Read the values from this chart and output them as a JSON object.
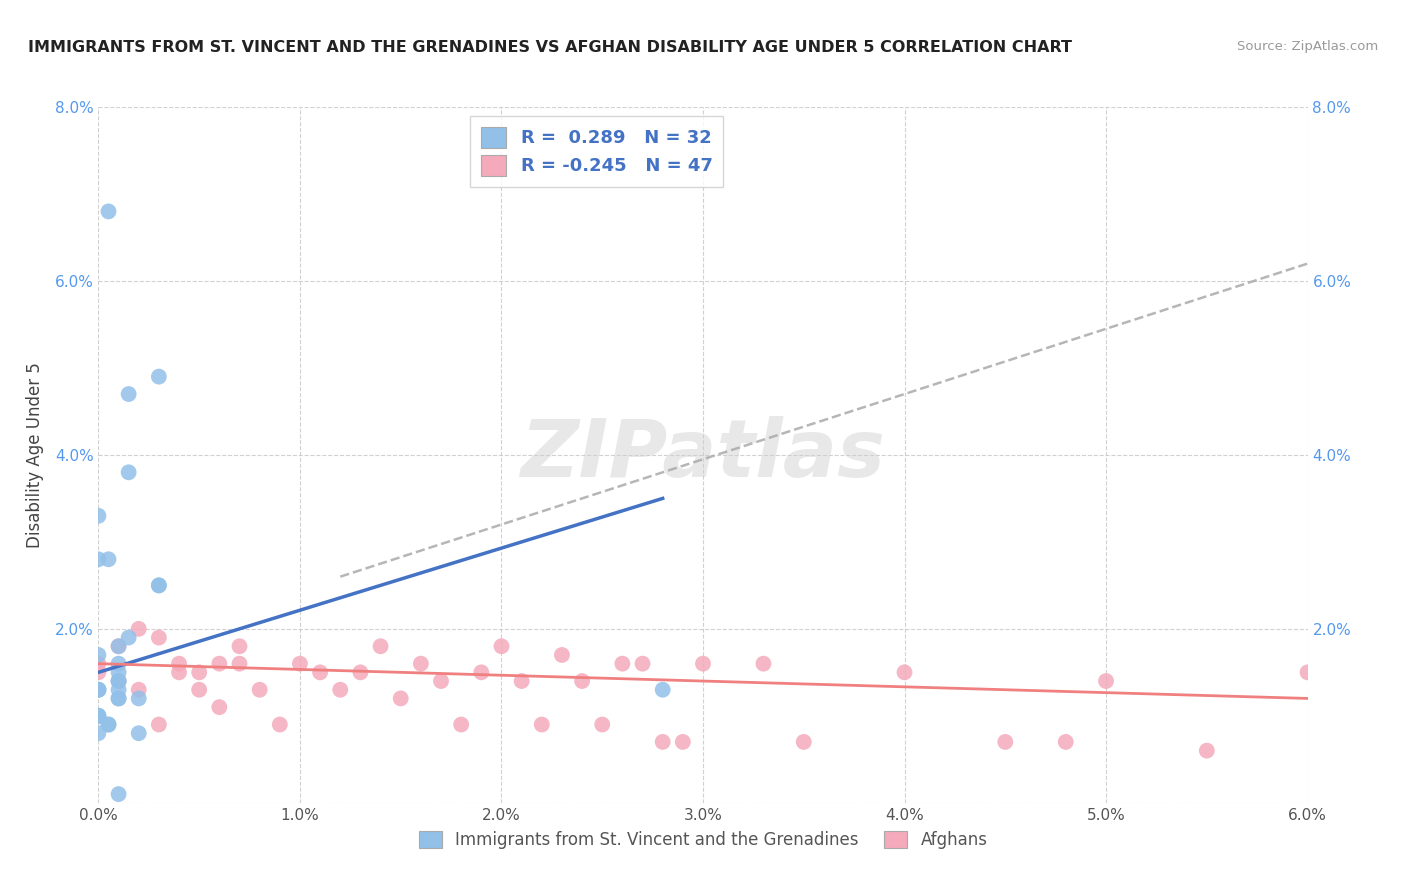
{
  "title": "IMMIGRANTS FROM ST. VINCENT AND THE GRENADINES VS AFGHAN DISABILITY AGE UNDER 5 CORRELATION CHART",
  "source": "Source: ZipAtlas.com",
  "ylabel": "Disability Age Under 5",
  "xlim": [
    0.0,
    0.06
  ],
  "ylim": [
    0.0,
    0.08
  ],
  "xtick_vals": [
    0.0,
    0.01,
    0.02,
    0.03,
    0.04,
    0.05,
    0.06
  ],
  "ytick_vals": [
    0.0,
    0.02,
    0.04,
    0.06,
    0.08
  ],
  "xtick_labels": [
    "0.0%",
    "1.0%",
    "2.0%",
    "3.0%",
    "4.0%",
    "5.0%",
    "6.0%"
  ],
  "ytick_labels": [
    "",
    "2.0%",
    "4.0%",
    "6.0%",
    "8.0%"
  ],
  "blue_color": "#92C0E8",
  "pink_color": "#F4AABB",
  "blue_line_color": "#4472C4",
  "pink_line_color": "#F08080",
  "dash_line_color": "#AAAAAA",
  "grid_color": "#CCCCCC",
  "legend_label1": "Immigrants from St. Vincent and the Grenadines",
  "legend_label2": "Afghans",
  "watermark_color": "#CECECE",
  "blue_x": [
    0.0005,
    0.0015,
    0.0,
    0.0,
    0.0005,
    0.0,
    0.0,
    0.001,
    0.001,
    0.0,
    0.0,
    0.001,
    0.0015,
    0.002,
    0.003,
    0.003,
    0.001,
    0.0,
    0.0,
    0.001,
    0.0,
    0.0005,
    0.0,
    0.001,
    0.002,
    0.0015,
    0.001,
    0.003,
    0.028,
    0.001,
    0.0005,
    0.001
  ],
  "blue_y": [
    0.068,
    0.038,
    0.033,
    0.028,
    0.028,
    0.017,
    0.013,
    0.018,
    0.014,
    0.013,
    0.013,
    0.012,
    0.019,
    0.012,
    0.025,
    0.025,
    0.012,
    0.01,
    0.01,
    0.016,
    0.01,
    0.009,
    0.008,
    0.015,
    0.008,
    0.047,
    0.001,
    0.049,
    0.013,
    0.013,
    0.009,
    0.014
  ],
  "pink_x": [
    0.0,
    0.001,
    0.0,
    0.001,
    0.002,
    0.002,
    0.003,
    0.003,
    0.004,
    0.004,
    0.005,
    0.005,
    0.006,
    0.006,
    0.007,
    0.007,
    0.008,
    0.009,
    0.01,
    0.011,
    0.012,
    0.013,
    0.014,
    0.015,
    0.016,
    0.017,
    0.018,
    0.019,
    0.02,
    0.021,
    0.022,
    0.023,
    0.024,
    0.025,
    0.026,
    0.027,
    0.028,
    0.029,
    0.03,
    0.033,
    0.035,
    0.04,
    0.05,
    0.055,
    0.06,
    0.045,
    0.048
  ],
  "pink_y": [
    0.016,
    0.014,
    0.015,
    0.018,
    0.02,
    0.013,
    0.019,
    0.009,
    0.015,
    0.016,
    0.015,
    0.013,
    0.016,
    0.011,
    0.018,
    0.016,
    0.013,
    0.009,
    0.016,
    0.015,
    0.013,
    0.015,
    0.018,
    0.012,
    0.016,
    0.014,
    0.009,
    0.015,
    0.018,
    0.014,
    0.009,
    0.017,
    0.014,
    0.009,
    0.016,
    0.016,
    0.007,
    0.007,
    0.016,
    0.016,
    0.007,
    0.015,
    0.014,
    0.006,
    0.015,
    0.007,
    0.007
  ],
  "blue_line_x0": 0.0,
  "blue_line_x1": 0.028,
  "blue_line_y0": 0.015,
  "blue_line_y1": 0.035,
  "dash_line_x0": 0.012,
  "dash_line_x1": 0.06,
  "dash_line_y0": 0.026,
  "dash_line_y1": 0.062,
  "pink_line_x0": 0.0,
  "pink_line_x1": 0.06,
  "pink_line_y0": 0.016,
  "pink_line_y1": 0.012
}
